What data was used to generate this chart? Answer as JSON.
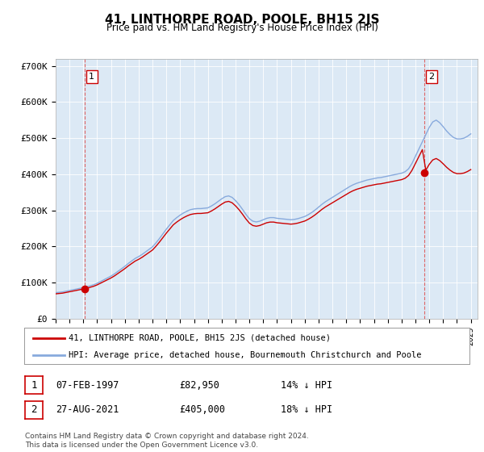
{
  "title": "41, LINTHORPE ROAD, POOLE, BH15 2JS",
  "subtitle": "Price paid vs. HM Land Registry's House Price Index (HPI)",
  "background_color": "#dce9f5",
  "plot_bg_color": "#dce9f5",
  "ylabel_ticks": [
    "£0",
    "£100K",
    "£200K",
    "£300K",
    "£400K",
    "£500K",
    "£600K",
    "£700K"
  ],
  "ytick_values": [
    0,
    100000,
    200000,
    300000,
    400000,
    500000,
    600000,
    700000
  ],
  "ylim": [
    0,
    720000
  ],
  "xlim_start": 1995.0,
  "xlim_end": 2025.5,
  "legend_line1": "41, LINTHORPE ROAD, POOLE, BH15 2JS (detached house)",
  "legend_line2": "HPI: Average price, detached house, Bournemouth Christchurch and Poole",
  "sale1_label": "1",
  "sale1_date": "07-FEB-1997",
  "sale1_price": "£82,950",
  "sale1_hpi": "14% ↓ HPI",
  "sale1_x": 1997.1,
  "sale1_y": 82950,
  "sale2_label": "2",
  "sale2_date": "27-AUG-2021",
  "sale2_price": "£405,000",
  "sale2_hpi": "18% ↓ HPI",
  "sale2_x": 2021.65,
  "sale2_y": 405000,
  "footer": "Contains HM Land Registry data © Crown copyright and database right 2024.\nThis data is licensed under the Open Government Licence v3.0.",
  "line_color_property": "#cc0000",
  "line_color_hpi": "#88aadd",
  "marker_color": "#cc0000",
  "dashed_line_color": "#dd6666",
  "hpi_x": [
    1995.0,
    1995.25,
    1995.5,
    1995.75,
    1996.0,
    1996.25,
    1996.5,
    1996.75,
    1997.0,
    1997.25,
    1997.5,
    1997.75,
    1998.0,
    1998.25,
    1998.5,
    1998.75,
    1999.0,
    1999.25,
    1999.5,
    1999.75,
    2000.0,
    2000.25,
    2000.5,
    2000.75,
    2001.0,
    2001.25,
    2001.5,
    2001.75,
    2002.0,
    2002.25,
    2002.5,
    2002.75,
    2003.0,
    2003.25,
    2003.5,
    2003.75,
    2004.0,
    2004.25,
    2004.5,
    2004.75,
    2005.0,
    2005.25,
    2005.5,
    2005.75,
    2006.0,
    2006.25,
    2006.5,
    2006.75,
    2007.0,
    2007.25,
    2007.5,
    2007.75,
    2008.0,
    2008.25,
    2008.5,
    2008.75,
    2009.0,
    2009.25,
    2009.5,
    2009.75,
    2010.0,
    2010.25,
    2010.5,
    2010.75,
    2011.0,
    2011.25,
    2011.5,
    2011.75,
    2012.0,
    2012.25,
    2012.5,
    2012.75,
    2013.0,
    2013.25,
    2013.5,
    2013.75,
    2014.0,
    2014.25,
    2014.5,
    2014.75,
    2015.0,
    2015.25,
    2015.5,
    2015.75,
    2016.0,
    2016.25,
    2016.5,
    2016.75,
    2017.0,
    2017.25,
    2017.5,
    2017.75,
    2018.0,
    2018.25,
    2018.5,
    2018.75,
    2019.0,
    2019.25,
    2019.5,
    2019.75,
    2020.0,
    2020.25,
    2020.5,
    2020.75,
    2021.0,
    2021.25,
    2021.5,
    2021.75,
    2022.0,
    2022.25,
    2022.5,
    2022.75,
    2023.0,
    2023.25,
    2023.5,
    2023.75,
    2024.0,
    2024.25,
    2024.5,
    2024.75,
    2025.0
  ],
  "hpi_y": [
    72000,
    73000,
    74000,
    76000,
    78000,
    80000,
    82000,
    84000,
    86000,
    88000,
    91000,
    94000,
    98000,
    103000,
    108000,
    113000,
    118000,
    124000,
    131000,
    138000,
    145000,
    153000,
    160000,
    167000,
    172000,
    178000,
    185000,
    192000,
    199000,
    210000,
    222000,
    235000,
    248000,
    260000,
    272000,
    280000,
    287000,
    293000,
    298000,
    302000,
    304000,
    305000,
    305000,
    306000,
    307000,
    312000,
    318000,
    325000,
    332000,
    338000,
    340000,
    336000,
    327000,
    316000,
    303000,
    289000,
    277000,
    270000,
    268000,
    270000,
    274000,
    278000,
    280000,
    280000,
    278000,
    277000,
    276000,
    275000,
    274000,
    275000,
    277000,
    280000,
    283000,
    288000,
    294000,
    301000,
    309000,
    317000,
    324000,
    330000,
    336000,
    342000,
    348000,
    354000,
    360000,
    366000,
    371000,
    375000,
    378000,
    381000,
    384000,
    386000,
    388000,
    390000,
    391000,
    393000,
    395000,
    397000,
    399000,
    401000,
    403000,
    407000,
    415000,
    430000,
    450000,
    470000,
    490000,
    510000,
    530000,
    545000,
    550000,
    543000,
    532000,
    520000,
    510000,
    502000,
    498000,
    498000,
    500000,
    505000,
    512000
  ],
  "prop_hpi_x": [
    1995.0,
    1995.25,
    1995.5,
    1995.75,
    1996.0,
    1996.25,
    1996.5,
    1996.75,
    1997.0,
    1997.25,
    1997.5,
    1997.75,
    1998.0,
    1998.25,
    1998.5,
    1998.75,
    1999.0,
    1999.25,
    1999.5,
    1999.75,
    2000.0,
    2000.25,
    2000.5,
    2000.75,
    2001.0,
    2001.25,
    2001.5,
    2001.75,
    2002.0,
    2002.25,
    2002.5,
    2002.75,
    2003.0,
    2003.25,
    2003.5,
    2003.75,
    2004.0,
    2004.25,
    2004.5,
    2004.75,
    2005.0,
    2005.25,
    2005.5,
    2005.75,
    2006.0,
    2006.25,
    2006.5,
    2006.75,
    2007.0,
    2007.25,
    2007.5,
    2007.75,
    2008.0,
    2008.25,
    2008.5,
    2008.75,
    2009.0,
    2009.25,
    2009.5,
    2009.75,
    2010.0,
    2010.25,
    2010.5,
    2010.75,
    2011.0,
    2011.25,
    2011.5,
    2011.75,
    2012.0,
    2012.25,
    2012.5,
    2012.75,
    2013.0,
    2013.25,
    2013.5,
    2013.75,
    2014.0,
    2014.25,
    2014.5,
    2014.75,
    2015.0,
    2015.25,
    2015.5,
    2015.75,
    2016.0,
    2016.25,
    2016.5,
    2016.75,
    2017.0,
    2017.25,
    2017.5,
    2017.75,
    2018.0,
    2018.25,
    2018.5,
    2018.75,
    2019.0,
    2019.25,
    2019.5,
    2019.75,
    2020.0,
    2020.25,
    2020.5,
    2020.75,
    2021.0,
    2021.25,
    2021.5,
    2021.75,
    2022.0,
    2022.25,
    2022.5,
    2022.75,
    2023.0,
    2023.25,
    2023.5,
    2023.75,
    2024.0,
    2024.25,
    2024.5,
    2024.75,
    2025.0
  ],
  "sale1_hpi_base": 96500,
  "sale2_hpi_base": 490000,
  "sale1_hpi_index": 86000,
  "sale2_hpi_index": 490000
}
